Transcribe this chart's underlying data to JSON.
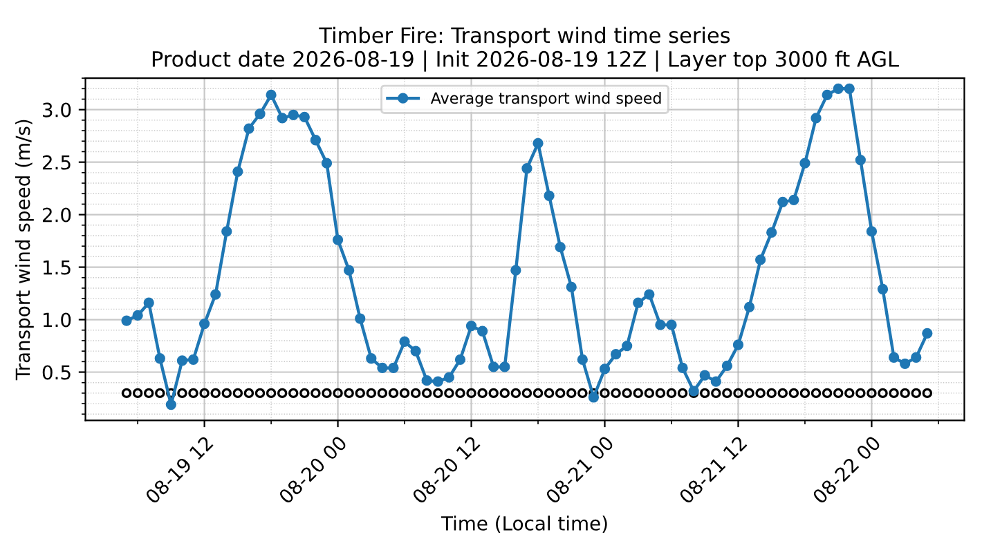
{
  "chart_data": {
    "type": "line",
    "title": "Timber Fire: Transport wind time series\nProduct date 2026-08-19 | Init 2026-08-19 12Z | Layer top 3000 ft AGL",
    "xlabel": "Time (Local time)",
    "ylabel": "Transport wind speed (m/s)",
    "x": [
      "2026-08-19T05:00",
      "2026-08-19T06:00",
      "2026-08-19T07:00",
      "2026-08-19T08:00",
      "2026-08-19T09:00",
      "2026-08-19T10:00",
      "2026-08-19T11:00",
      "2026-08-19T12:00",
      "2026-08-19T13:00",
      "2026-08-19T14:00",
      "2026-08-19T15:00",
      "2026-08-19T16:00",
      "2026-08-19T17:00",
      "2026-08-19T18:00",
      "2026-08-19T19:00",
      "2026-08-19T20:00",
      "2026-08-19T21:00",
      "2026-08-19T22:00",
      "2026-08-19T23:00",
      "2026-08-20T00:00",
      "2026-08-20T01:00",
      "2026-08-20T02:00",
      "2026-08-20T03:00",
      "2026-08-20T04:00",
      "2026-08-20T05:00",
      "2026-08-20T06:00",
      "2026-08-20T07:00",
      "2026-08-20T08:00",
      "2026-08-20T09:00",
      "2026-08-20T10:00",
      "2026-08-20T11:00",
      "2026-08-20T12:00",
      "2026-08-20T13:00",
      "2026-08-20T14:00",
      "2026-08-20T15:00",
      "2026-08-20T16:00",
      "2026-08-20T17:00",
      "2026-08-20T18:00",
      "2026-08-20T19:00",
      "2026-08-20T20:00",
      "2026-08-20T21:00",
      "2026-08-20T22:00",
      "2026-08-20T23:00",
      "2026-08-21T00:00",
      "2026-08-21T01:00",
      "2026-08-21T02:00",
      "2026-08-21T03:00",
      "2026-08-21T04:00",
      "2026-08-21T05:00",
      "2026-08-21T06:00",
      "2026-08-21T07:00",
      "2026-08-21T08:00",
      "2026-08-21T09:00",
      "2026-08-21T10:00",
      "2026-08-21T11:00",
      "2026-08-21T12:00",
      "2026-08-21T13:00",
      "2026-08-21T14:00",
      "2026-08-21T15:00",
      "2026-08-21T16:00",
      "2026-08-21T17:00",
      "2026-08-21T18:00",
      "2026-08-21T19:00",
      "2026-08-21T20:00",
      "2026-08-21T21:00",
      "2026-08-21T22:00",
      "2026-08-21T23:00",
      "2026-08-22T00:00",
      "2026-08-22T01:00",
      "2026-08-22T02:00",
      "2026-08-22T03:00",
      "2026-08-22T04:00",
      "2026-08-22T05:00"
    ],
    "series": [
      {
        "name": "Average transport wind speed",
        "color": "#1f77b4",
        "values": [
          0.99,
          1.04,
          1.16,
          0.63,
          0.19,
          0.61,
          0.62,
          0.96,
          1.24,
          1.84,
          2.41,
          2.82,
          2.96,
          3.14,
          2.92,
          2.95,
          2.93,
          2.71,
          2.49,
          1.76,
          1.47,
          1.01,
          0.63,
          0.54,
          0.54,
          0.79,
          0.7,
          0.42,
          0.41,
          0.45,
          0.62,
          0.94,
          0.89,
          0.55,
          0.55,
          1.47,
          2.44,
          2.68,
          2.18,
          1.69,
          1.31,
          0.62,
          0.26,
          0.53,
          0.67,
          0.75,
          1.16,
          1.24,
          0.95,
          0.95,
          0.54,
          0.32,
          0.47,
          0.41,
          0.56,
          0.76,
          1.12,
          1.57,
          1.83,
          2.12,
          2.14,
          2.49,
          2.92,
          3.14,
          3.2,
          3.2,
          2.52,
          1.84,
          1.29,
          0.64,
          0.58,
          0.64,
          0.87
        ]
      },
      {
        "type": "scatter",
        "color": "#000000",
        "values": [
          0.3,
          0.3,
          0.3,
          0.3,
          0.3,
          0.3,
          0.3,
          0.3,
          0.3,
          0.3,
          0.3,
          0.3,
          0.3,
          0.3,
          0.3,
          0.3,
          0.3,
          0.3,
          0.3,
          0.3,
          0.3,
          0.3,
          0.3,
          0.3,
          0.3,
          0.3,
          0.3,
          0.3,
          0.3,
          0.3,
          0.3,
          0.3,
          0.3,
          0.3,
          0.3,
          0.3,
          0.3,
          0.3,
          0.3,
          0.3,
          0.3,
          0.3,
          0.3,
          0.3,
          0.3,
          0.3,
          0.3,
          0.3,
          0.3,
          0.3,
          0.3,
          0.3,
          0.3,
          0.3,
          0.3,
          0.3,
          0.3,
          0.3,
          0.3,
          0.3,
          0.3,
          0.3,
          0.3,
          0.3,
          0.3,
          0.3,
          0.3,
          0.3,
          0.3,
          0.3,
          0.3,
          0.3,
          0.3
        ]
      }
    ],
    "xlim": [
      "2026-08-19T01:18",
      "2026-08-22T08:20"
    ],
    "xticks": [
      {
        "value": "2026-08-19T12:00",
        "label": "08-19 12"
      },
      {
        "value": "2026-08-20T00:00",
        "label": "08-20 00"
      },
      {
        "value": "2026-08-20T12:00",
        "label": "08-20 12"
      },
      {
        "value": "2026-08-21T00:00",
        "label": "08-21 00"
      },
      {
        "value": "2026-08-21T12:00",
        "label": "08-21 12"
      },
      {
        "value": "2026-08-22T00:00",
        "label": "08-22 00"
      }
    ],
    "ylim": [
      0.04,
      3.3
    ],
    "yticks": [
      0.5,
      {
        "value": 1,
        "label": "1.0"
      },
      1.5,
      {
        "value": 2,
        "label": "2.0"
      },
      2.5,
      {
        "value": 3,
        "label": "3.0"
      }
    ],
    "grid": true,
    "legend": "top",
    "marker": "circle",
    "line_style": "solid"
  }
}
